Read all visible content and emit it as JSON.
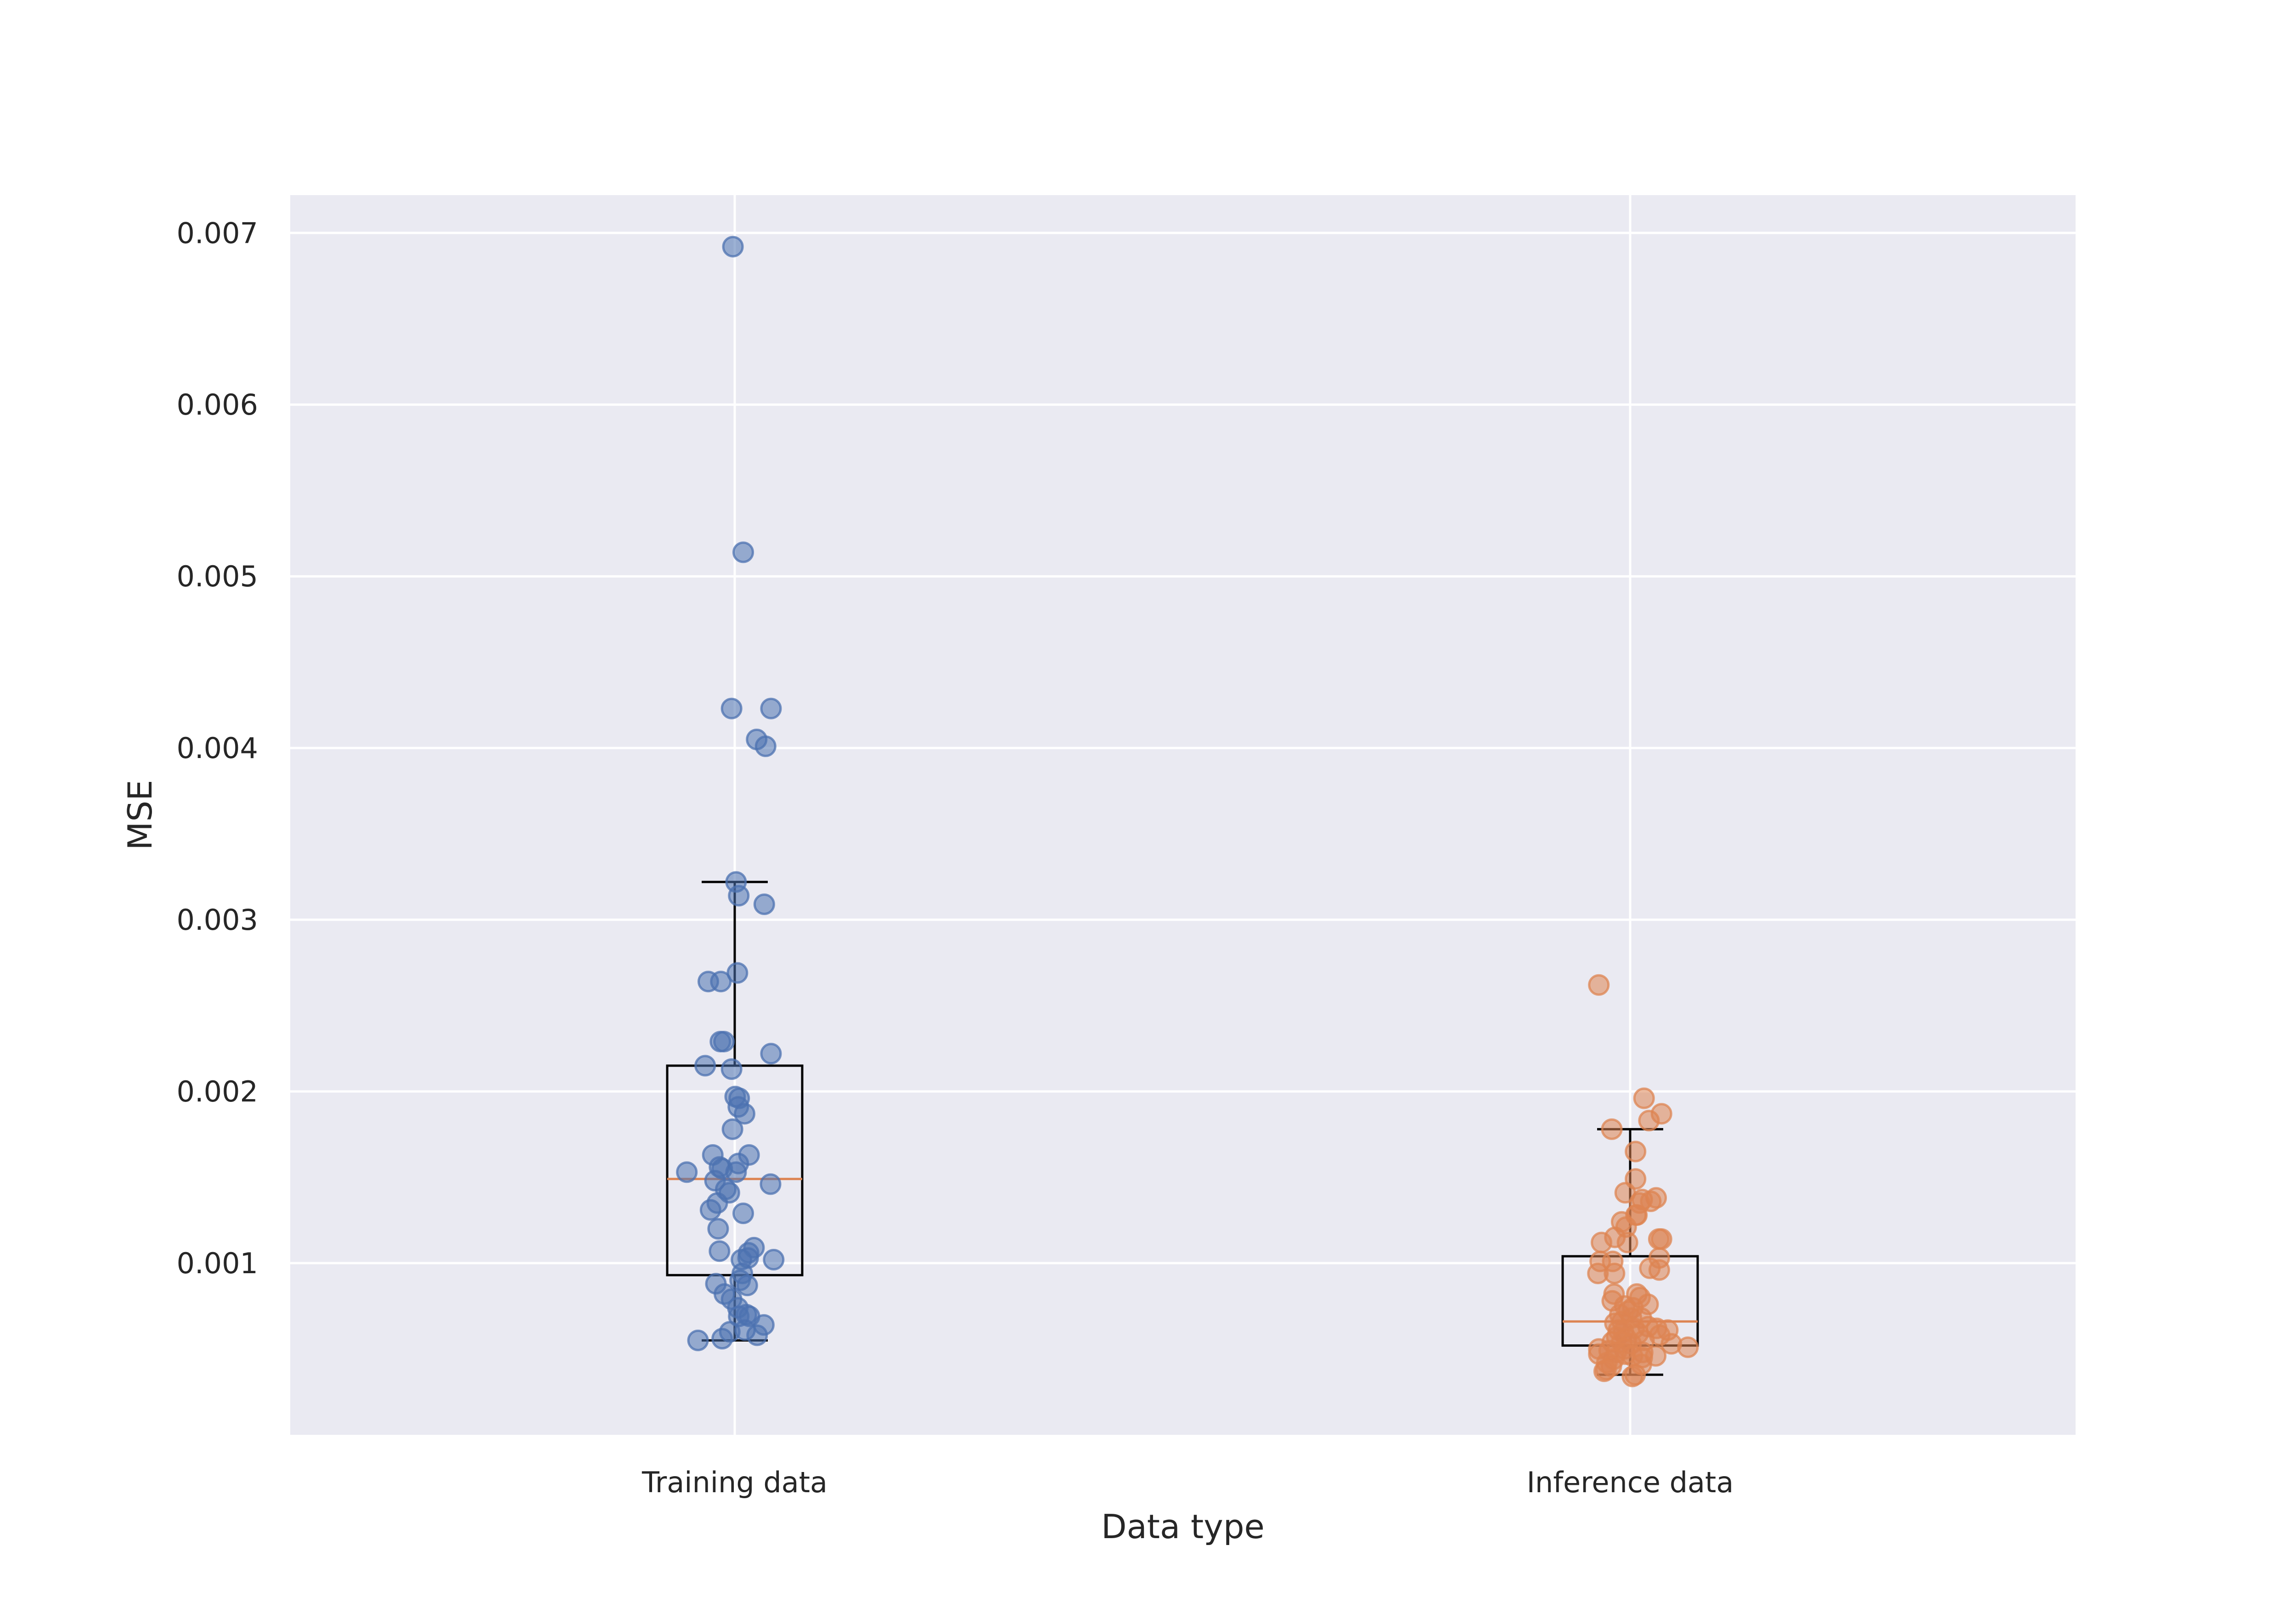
{
  "chart_data": {
    "type": "box-strip",
    "title": "",
    "xlabel": "Data type",
    "ylabel": "MSE",
    "categories": [
      "Training data",
      "Inference data"
    ],
    "ylim": [
      0.0,
      0.00722
    ],
    "yticks": [
      0.001,
      0.002,
      0.003,
      0.004,
      0.005,
      0.006,
      0.007
    ],
    "ytick_labels": [
      "0.001",
      "0.002",
      "0.003",
      "0.004",
      "0.005",
      "0.006",
      "0.007"
    ],
    "grid": true,
    "colors": {
      "background": "#eaeaf2",
      "grid": "#ffffff",
      "training": "#4c72b0",
      "inference": "#dd8452",
      "median": "#dd8452",
      "box": "#000000"
    },
    "boxes": [
      {
        "category": "Training data",
        "whisker_low": 0.00055,
        "q1": 0.00093,
        "median": 0.00149,
        "q3": 0.00215,
        "whisker_high": 0.00322
      },
      {
        "category": "Inference data",
        "whisker_low": 0.00035,
        "q1": 0.00052,
        "median": 0.00066,
        "q3": 0.00104,
        "whisker_high": 0.00178
      }
    ],
    "series": [
      {
        "name": "Training data",
        "points": [
          [
            -0.004,
            0.00692
          ],
          [
            0.019,
            0.00514
          ],
          [
            -0.007,
            0.00423
          ],
          [
            0.081,
            0.00423
          ],
          [
            0.049,
            0.00405
          ],
          [
            0.069,
            0.00401
          ],
          [
            0.003,
            0.00322
          ],
          [
            0.009,
            0.00314
          ],
          [
            0.066,
            0.00309
          ],
          [
            -0.059,
            0.00264
          ],
          [
            -0.031,
            0.00264
          ],
          [
            0.006,
            0.00269
          ],
          [
            -0.032,
            0.00229
          ],
          [
            -0.024,
            0.00229
          ],
          [
            0.081,
            0.00222
          ],
          [
            -0.066,
            0.00215
          ],
          [
            -0.007,
            0.00213
          ],
          [
            0.001,
            0.00197
          ],
          [
            0.01,
            0.00196
          ],
          [
            0.008,
            0.00191
          ],
          [
            0.022,
            0.00187
          ],
          [
            -0.005,
            0.00178
          ],
          [
            -0.049,
            0.00163
          ],
          [
            0.032,
            0.00163
          ],
          [
            0.008,
            0.00158
          ],
          [
            -0.034,
            0.00156
          ],
          [
            -0.028,
            0.00155
          ],
          [
            -0.107,
            0.00153
          ],
          [
            0.003,
            0.00153
          ],
          [
            -0.044,
            0.00148
          ],
          [
            -0.02,
            0.00143
          ],
          [
            -0.012,
            0.00141
          ],
          [
            0.08,
            0.00146
          ],
          [
            -0.039,
            0.00135
          ],
          [
            -0.054,
            0.00131
          ],
          [
            0.019,
            0.00129
          ],
          [
            -0.037,
            0.0012
          ],
          [
            0.043,
            0.00109
          ],
          [
            -0.034,
            0.00107
          ],
          [
            0.031,
            0.00106
          ],
          [
            0.03,
            0.00103
          ],
          [
            0.015,
            0.00102
          ],
          [
            0.087,
            0.00102
          ],
          [
            0.017,
            0.00094
          ],
          [
            0.012,
            0.0009
          ],
          [
            -0.042,
            0.00088
          ],
          [
            0.028,
            0.00087
          ],
          [
            -0.023,
            0.00082
          ],
          [
            -0.007,
            0.00079
          ],
          [
            0.007,
            0.00074
          ],
          [
            0.026,
            0.0007
          ],
          [
            0.009,
            0.00069
          ],
          [
            0.033,
            0.00069
          ],
          [
            0.065,
            0.00064
          ],
          [
            0.023,
            0.00061
          ],
          [
            -0.011,
            0.0006
          ],
          [
            0.05,
            0.00058
          ],
          [
            -0.082,
            0.00055
          ],
          [
            -0.028,
            0.00056
          ]
        ]
      },
      {
        "name": "Inference data",
        "points": [
          [
            -0.07,
            0.00262
          ],
          [
            0.031,
            0.00196
          ],
          [
            0.07,
            0.00187
          ],
          [
            0.042,
            0.00183
          ],
          [
            -0.041,
            0.00178
          ],
          [
            0.012,
            0.00165
          ],
          [
            0.012,
            0.00149
          ],
          [
            -0.011,
            0.00141
          ],
          [
            0.058,
            0.00138
          ],
          [
            0.027,
            0.00137
          ],
          [
            0.046,
            0.00136
          ],
          [
            0.021,
            0.00135
          ],
          [
            0.015,
            0.00128
          ],
          [
            0.013,
            0.00128
          ],
          [
            -0.019,
            0.00124
          ],
          [
            -0.009,
            0.00121
          ],
          [
            -0.034,
            0.00115
          ],
          [
            0.064,
            0.00114
          ],
          [
            0.07,
            0.00114
          ],
          [
            -0.006,
            0.00112
          ],
          [
            -0.064,
            0.00112
          ],
          [
            0.065,
            0.00103
          ],
          [
            -0.039,
            0.00101
          ],
          [
            -0.067,
            0.00101
          ],
          [
            0.044,
            0.00097
          ],
          [
            -0.035,
            0.00094
          ],
          [
            -0.072,
            0.00094
          ],
          [
            0.065,
            0.00096
          ],
          [
            0.015,
            0.00082
          ],
          [
            -0.036,
            0.00082
          ],
          [
            0.022,
            0.0008
          ],
          [
            -0.04,
            0.00078
          ],
          [
            0.04,
            0.00076
          ],
          [
            -0.012,
            0.00075
          ],
          [
            0.006,
            0.00074
          ],
          [
            -0.004,
            0.00072
          ],
          [
            -0.023,
            0.0007
          ],
          [
            0.003,
            0.00068
          ],
          [
            0.025,
            0.00068
          ],
          [
            -0.018,
            0.00066
          ],
          [
            -0.034,
            0.00065
          ],
          [
            0.04,
            0.00063
          ],
          [
            0.009,
            0.00062
          ],
          [
            0.059,
            0.00062
          ],
          [
            -0.026,
            0.00061
          ],
          [
            0.084,
            0.00061
          ],
          [
            -0.015,
            0.0006
          ],
          [
            0.018,
            0.00059
          ],
          [
            0.066,
            0.00058
          ],
          [
            -0.03,
            0.00057
          ],
          [
            -0.008,
            0.00056
          ],
          [
            0.031,
            0.00055
          ],
          [
            -0.04,
            0.00054
          ],
          [
            -0.019,
            0.00054
          ],
          [
            0.002,
            0.00053
          ],
          [
            0.092,
            0.00053
          ],
          [
            0.129,
            0.00051
          ],
          [
            -0.07,
            0.0005
          ],
          [
            -0.013,
            0.0005
          ],
          [
            -0.047,
            0.00049
          ],
          [
            -0.031,
            0.00048
          ],
          [
            0.028,
            0.00048
          ],
          [
            -0.07,
            0.00047
          ],
          [
            -0.011,
            0.00047
          ],
          [
            0.005,
            0.00046
          ],
          [
            0.057,
            0.00046
          ],
          [
            0.027,
            0.00045
          ],
          [
            -0.037,
            0.00044
          ],
          [
            -0.052,
            0.00042
          ],
          [
            0.025,
            0.00041
          ],
          [
            -0.042,
            0.0004
          ],
          [
            -0.054,
            0.00038
          ],
          [
            -0.058,
            0.00037
          ],
          [
            0.011,
            0.00035
          ],
          [
            0.005,
            0.00034
          ]
        ]
      }
    ]
  }
}
